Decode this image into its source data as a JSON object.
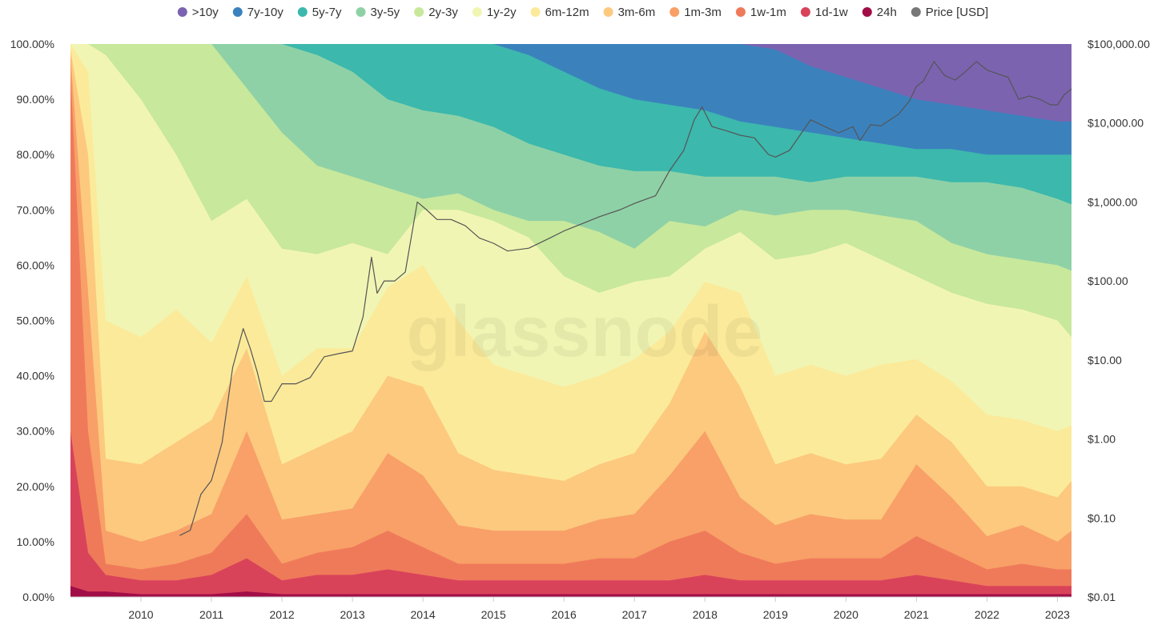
{
  "chart_data": {
    "type": "area",
    "stacked": true,
    "title": "",
    "watermark": "glassnode",
    "xlabel": "",
    "ylabel_left": "",
    "ylabel_right": "",
    "x_ticks": [
      "2010",
      "2011",
      "2012",
      "2013",
      "2014",
      "2015",
      "2016",
      "2017",
      "2018",
      "2019",
      "2020",
      "2021",
      "2022",
      "2023"
    ],
    "x_tick_values": [
      2010,
      2011,
      2012,
      2013,
      2014,
      2015,
      2016,
      2017,
      2018,
      2019,
      2020,
      2021,
      2022,
      2023
    ],
    "xlim": [
      2009.0,
      2023.2
    ],
    "y_ticks_left": [
      "0.00%",
      "10.00%",
      "20.00%",
      "30.00%",
      "40.00%",
      "50.00%",
      "60.00%",
      "70.00%",
      "80.00%",
      "90.00%",
      "100.00%"
    ],
    "ylim_left": [
      0,
      100
    ],
    "y_ticks_right": [
      "$0.01",
      "$0.10",
      "$1.00",
      "$10.00",
      "$100.00",
      "$1,000.00",
      "$10,000.00",
      "$100,000.00"
    ],
    "y_right_log_range": [
      0.01,
      100000
    ],
    "grid": false,
    "legend_position": "top-center",
    "legend": [
      {
        "label": ">10y",
        "color": "#7b63b0"
      },
      {
        "label": "7y-10y",
        "color": "#3b82bd"
      },
      {
        "label": "5y-7y",
        "color": "#3cb8ad"
      },
      {
        "label": "3y-5y",
        "color": "#8fd1a6"
      },
      {
        "label": "2y-3y",
        "color": "#c8e89c"
      },
      {
        "label": "1y-2y",
        "color": "#f1f5b3"
      },
      {
        "label": "6m-12m",
        "color": "#fbea9a"
      },
      {
        "label": "3m-6m",
        "color": "#fcc97f"
      },
      {
        "label": "1m-3m",
        "color": "#f8a067"
      },
      {
        "label": "1w-1m",
        "color": "#ef7a5a"
      },
      {
        "label": "1d-1w",
        "color": "#d9435a"
      },
      {
        "label": "24h",
        "color": "#a10d47"
      },
      {
        "label": "Price [USD]",
        "color": "#777777"
      }
    ],
    "x": [
      2009.0,
      2009.25,
      2009.5,
      2010.0,
      2010.5,
      2011.0,
      2011.5,
      2012.0,
      2012.5,
      2013.0,
      2013.5,
      2014.0,
      2014.5,
      2015.0,
      2015.5,
      2016.0,
      2016.5,
      2017.0,
      2017.5,
      2018.0,
      2018.5,
      2019.0,
      2019.5,
      2020.0,
      2020.5,
      2021.0,
      2021.5,
      2022.0,
      2022.5,
      2023.0,
      2023.2
    ],
    "cumulative_boundaries_percent": [
      {
        "name": "24h",
        "values": [
          2,
          1,
          1,
          0.5,
          0.5,
          0.5,
          1,
          0.5,
          0.5,
          0.5,
          0.5,
          0.5,
          0.5,
          0.5,
          0.5,
          0.5,
          0.5,
          0.5,
          0.5,
          0.5,
          0.5,
          0.5,
          0.5,
          0.5,
          0.5,
          0.5,
          0.5,
          0.5,
          0.5,
          0.5,
          0.5
        ]
      },
      {
        "name": "1d-1w",
        "values": [
          30,
          8,
          4,
          3,
          3,
          4,
          7,
          3,
          4,
          4,
          5,
          4,
          3,
          3,
          3,
          3,
          3,
          3,
          3,
          4,
          3,
          3,
          3,
          3,
          3,
          4,
          3,
          2,
          2,
          2,
          2
        ]
      },
      {
        "name": "1w-1m",
        "values": [
          95,
          30,
          6,
          5,
          6,
          8,
          15,
          6,
          8,
          9,
          12,
          9,
          6,
          6,
          6,
          6,
          7,
          7,
          10,
          12,
          8,
          6,
          7,
          7,
          7,
          11,
          8,
          5,
          6,
          5,
          5
        ]
      },
      {
        "name": "1m-3m",
        "values": [
          98,
          55,
          12,
          10,
          12,
          15,
          30,
          14,
          15,
          16,
          26,
          22,
          13,
          12,
          12,
          12,
          14,
          15,
          22,
          30,
          18,
          13,
          15,
          14,
          14,
          24,
          18,
          11,
          13,
          10,
          12
        ]
      },
      {
        "name": "3m-6m",
        "values": [
          99,
          80,
          25,
          24,
          28,
          32,
          45,
          24,
          27,
          30,
          40,
          38,
          26,
          23,
          22,
          21,
          24,
          26,
          35,
          48,
          38,
          24,
          26,
          24,
          25,
          33,
          28,
          20,
          20,
          18,
          21
        ]
      },
      {
        "name": "6m-12m",
        "values": [
          100,
          95,
          50,
          47,
          52,
          46,
          58,
          40,
          45,
          45,
          56,
          60,
          50,
          42,
          40,
          38,
          40,
          43,
          48,
          57,
          55,
          40,
          42,
          40,
          42,
          43,
          39,
          33,
          32,
          30,
          31
        ]
      },
      {
        "name": "1y-2y",
        "values": [
          100,
          100,
          98,
          90,
          80,
          68,
          72,
          63,
          62,
          64,
          62,
          70,
          70,
          68,
          65,
          58,
          55,
          57,
          58,
          63,
          66,
          61,
          62,
          64,
          61,
          58,
          55,
          53,
          52,
          50,
          47
        ]
      },
      {
        "name": "2y-3y",
        "values": [
          100,
          100,
          100,
          100,
          100,
          100,
          92,
          84,
          78,
          76,
          74,
          72,
          73,
          70,
          68,
          68,
          66,
          63,
          68,
          67,
          70,
          69,
          70,
          70,
          69,
          68,
          64,
          62,
          61,
          60,
          59
        ]
      },
      {
        "name": "3y-5y",
        "values": [
          100,
          100,
          100,
          100,
          100,
          100,
          100,
          100,
          98,
          95,
          90,
          88,
          87,
          85,
          82,
          80,
          78,
          77,
          77,
          76,
          76,
          76,
          75,
          76,
          76,
          76,
          75,
          75,
          74,
          72,
          71
        ]
      },
      {
        "name": "5y-7y",
        "values": [
          100,
          100,
          100,
          100,
          100,
          100,
          100,
          100,
          100,
          100,
          100,
          100,
          100,
          100,
          98,
          95,
          92,
          90,
          89,
          88,
          86,
          85,
          84,
          83,
          82,
          81,
          81,
          80,
          80,
          80,
          80
        ]
      },
      {
        "name": "7y-10y",
        "values": [
          100,
          100,
          100,
          100,
          100,
          100,
          100,
          100,
          100,
          100,
          100,
          100,
          100,
          100,
          100,
          100,
          100,
          100,
          100,
          100,
          100,
          99,
          96,
          94,
          92,
          90,
          89,
          88,
          87,
          86,
          86
        ]
      },
      {
        "name": ">10y",
        "values": [
          100,
          100,
          100,
          100,
          100,
          100,
          100,
          100,
          100,
          100,
          100,
          100,
          100,
          100,
          100,
          100,
          100,
          100,
          100,
          100,
          100,
          100,
          100,
          100,
          100,
          100,
          100,
          100,
          100,
          100,
          100
        ]
      }
    ],
    "price_series": {
      "name": "Price [USD]",
      "x": [
        2010.55,
        2010.7,
        2010.85,
        2011.0,
        2011.15,
        2011.3,
        2011.45,
        2011.55,
        2011.65,
        2011.75,
        2011.85,
        2012.0,
        2012.2,
        2012.4,
        2012.6,
        2012.8,
        2013.0,
        2013.15,
        2013.27,
        2013.35,
        2013.45,
        2013.6,
        2013.75,
        2013.92,
        2014.05,
        2014.2,
        2014.4,
        2014.6,
        2014.8,
        2015.0,
        2015.2,
        2015.5,
        2015.8,
        2016.0,
        2016.3,
        2016.5,
        2016.8,
        2017.0,
        2017.3,
        2017.5,
        2017.7,
        2017.85,
        2017.96,
        2018.1,
        2018.3,
        2018.5,
        2018.7,
        2018.9,
        2019.0,
        2019.2,
        2019.5,
        2019.7,
        2019.9,
        2020.1,
        2020.2,
        2020.35,
        2020.5,
        2020.75,
        2020.9,
        2021.0,
        2021.1,
        2021.25,
        2021.4,
        2021.55,
        2021.7,
        2021.85,
        2022.0,
        2022.15,
        2022.3,
        2022.45,
        2022.6,
        2022.75,
        2022.9,
        2023.0,
        2023.1,
        2023.2
      ],
      "y": [
        0.06,
        0.07,
        0.2,
        0.3,
        0.9,
        8,
        25,
        14,
        7,
        3,
        3,
        5,
        5,
        6,
        11,
        12,
        13,
        35,
        200,
        70,
        100,
        100,
        130,
        1000,
        800,
        600,
        600,
        500,
        350,
        300,
        240,
        260,
        350,
        430,
        550,
        650,
        800,
        960,
        1200,
        2500,
        4500,
        11000,
        16000,
        9000,
        8000,
        7000,
        6500,
        4000,
        3700,
        4500,
        11000,
        9000,
        7500,
        9000,
        6000,
        9500,
        9200,
        13000,
        19000,
        29000,
        34000,
        60000,
        40000,
        35000,
        45000,
        60000,
        47000,
        42000,
        38000,
        20000,
        22000,
        20000,
        17000,
        17000,
        23000,
        27000
      ]
    }
  }
}
